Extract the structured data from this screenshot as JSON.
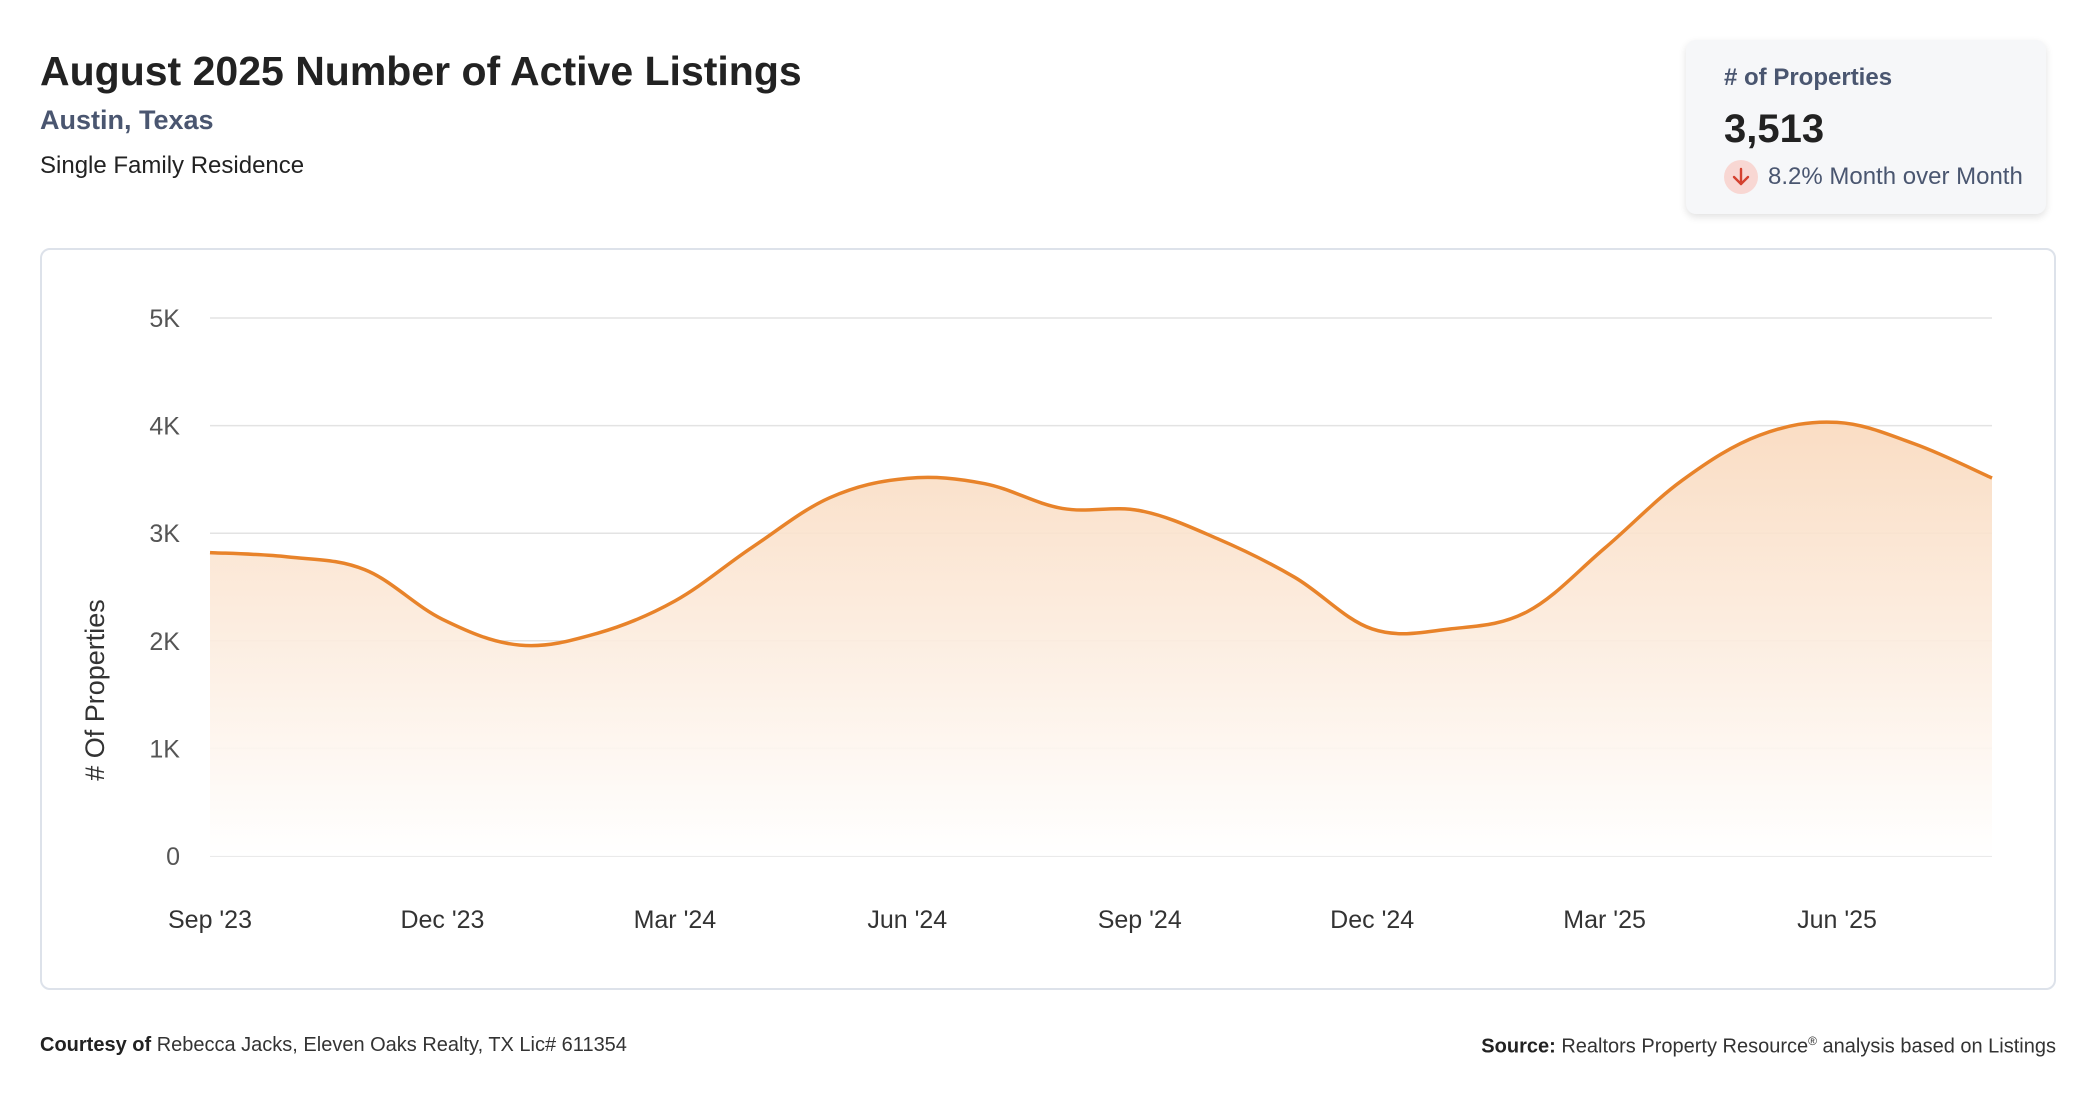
{
  "header": {
    "title": "August 2025 Number of Active Listings",
    "location": "Austin, Texas",
    "property_type": "Single Family Residence"
  },
  "kpi": {
    "label": "# of Properties",
    "value": "3,513",
    "change_text": "8.2% Month over Month",
    "change_direction": "down",
    "icon": "arrow-down-icon"
  },
  "footer": {
    "courtesy_label": "Courtesy of",
    "courtesy_text": "Rebecca Jacks, Eleven Oaks Realty, TX Lic# 611354",
    "source_label": "Source:",
    "source_text": "Realtors Property Resource",
    "source_mark": "®",
    "source_suffix": "analysis based on Listings"
  },
  "colors": {
    "line": "#e8832a",
    "area_top": "#f9d9bd",
    "area_bottom": "#ffffff",
    "grid": "#e3e3e3",
    "kpi_down_bg": "#f8d7d3",
    "kpi_down_arrow": "#d4412f",
    "accent_text": "#4a5670"
  },
  "chart_data": {
    "type": "area",
    "ylabel": "# Of Properties",
    "xlabel": "",
    "ylim": [
      0,
      5000
    ],
    "y_ticks": [
      0,
      1000,
      2000,
      3000,
      4000,
      5000
    ],
    "y_tick_labels": [
      "0",
      "1K",
      "2K",
      "3K",
      "4K",
      "5K"
    ],
    "x_tick_labels": [
      "Sep '23",
      "Dec '23",
      "Mar '24",
      "Jun '24",
      "Sep '24",
      "Dec '24",
      "Mar '25",
      "Jun '25"
    ],
    "x_tick_indices": [
      0,
      3,
      6,
      9,
      12,
      15,
      18,
      21
    ],
    "grid": true,
    "legend": "none",
    "x": [
      "Sep 2023",
      "Oct 2023",
      "Nov 2023",
      "Dec 2023",
      "Jan 2024",
      "Feb 2024",
      "Mar 2024",
      "Apr 2024",
      "May 2024",
      "Jun 2024",
      "Jul 2024",
      "Aug 2024",
      "Sep 2024",
      "Oct 2024",
      "Nov 2024",
      "Dec 2024",
      "Jan 2025",
      "Feb 2025",
      "Mar 2025",
      "Apr 2025",
      "May 2025",
      "Jun 2025",
      "Jul 2025",
      "Aug 2025"
    ],
    "series": [
      {
        "values": [
          2820,
          2780,
          2660,
          2200,
          1960,
          2070,
          2370,
          2870,
          3330,
          3510,
          3460,
          3230,
          3210,
          2950,
          2590,
          2110,
          2110,
          2270,
          2860,
          3490,
          3910,
          4030,
          3830,
          3513
        ]
      }
    ]
  }
}
